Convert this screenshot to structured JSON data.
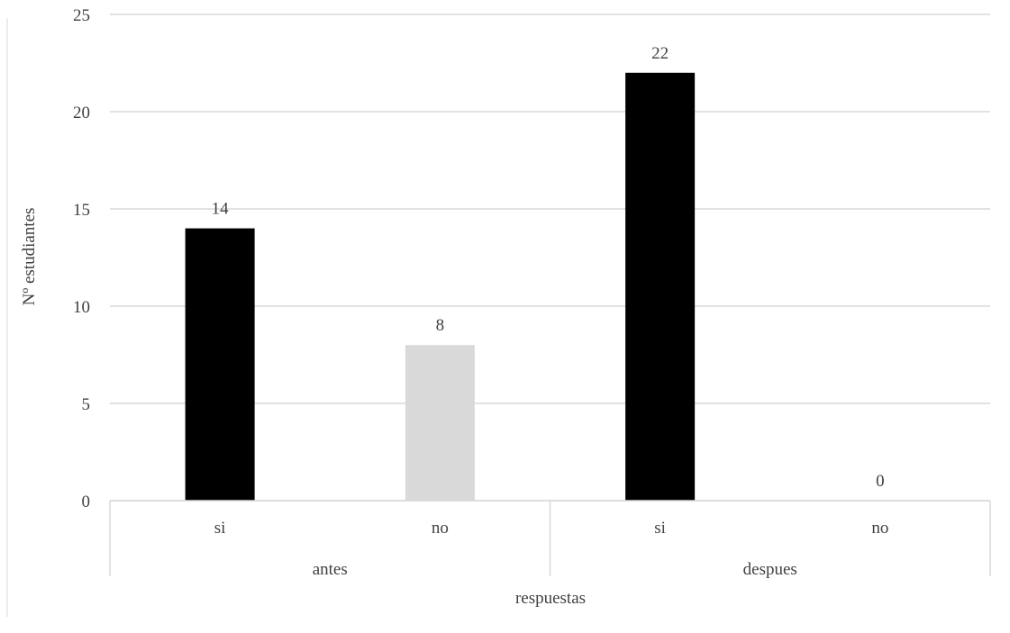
{
  "chart_data": {
    "type": "bar",
    "title": "",
    "ylabel": "Nº estudiantes",
    "xlabel": "respuestas",
    "ylim": [
      0,
      25
    ],
    "yticks": [
      "0",
      "5",
      "10",
      "15",
      "20",
      "25"
    ],
    "grid": true,
    "categories": [
      {
        "group": "antes",
        "label": "si",
        "value": 14,
        "color": "#000000"
      },
      {
        "group": "antes",
        "label": "no",
        "value": 8,
        "color": "#d9d9d9"
      },
      {
        "group": "despues",
        "label": "si",
        "value": 22,
        "color": "#000000"
      },
      {
        "group": "despues",
        "label": "no",
        "value": 0,
        "color": "#d9d9d9"
      }
    ],
    "groups": [
      "antes",
      "despues"
    ],
    "data_labels": [
      "14",
      "8",
      "22",
      "0"
    ]
  }
}
